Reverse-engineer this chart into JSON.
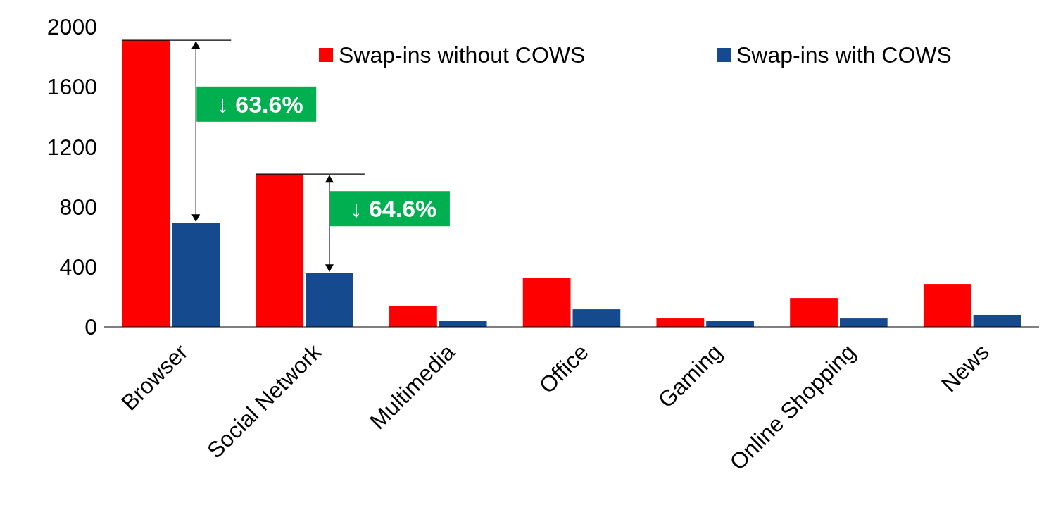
{
  "chart_data": {
    "type": "bar",
    "categories": [
      "Browser",
      "Social Network",
      "Multimedia",
      "Office",
      "Gaming",
      "Online Shopping",
      "News"
    ],
    "series": [
      {
        "name": "Swap-ins without COWS",
        "color": "#ff0000",
        "values": [
          1910,
          1018,
          141,
          328,
          56,
          192,
          286
        ]
      },
      {
        "name": "Swap-ins with COWS",
        "color": "#164a8e",
        "values": [
          694,
          360,
          42,
          117,
          38,
          56,
          80
        ]
      }
    ],
    "ylim": [
      0,
      2000
    ],
    "yticks": [
      0,
      400,
      800,
      1200,
      1600,
      2000
    ],
    "grid": false,
    "legend": "top right",
    "annotations": [
      "↓ 63.6%",
      {
        "text": "↓ 64.6%",
        "x": "Social Network",
        "y": 360
      }
    ]
  }
}
